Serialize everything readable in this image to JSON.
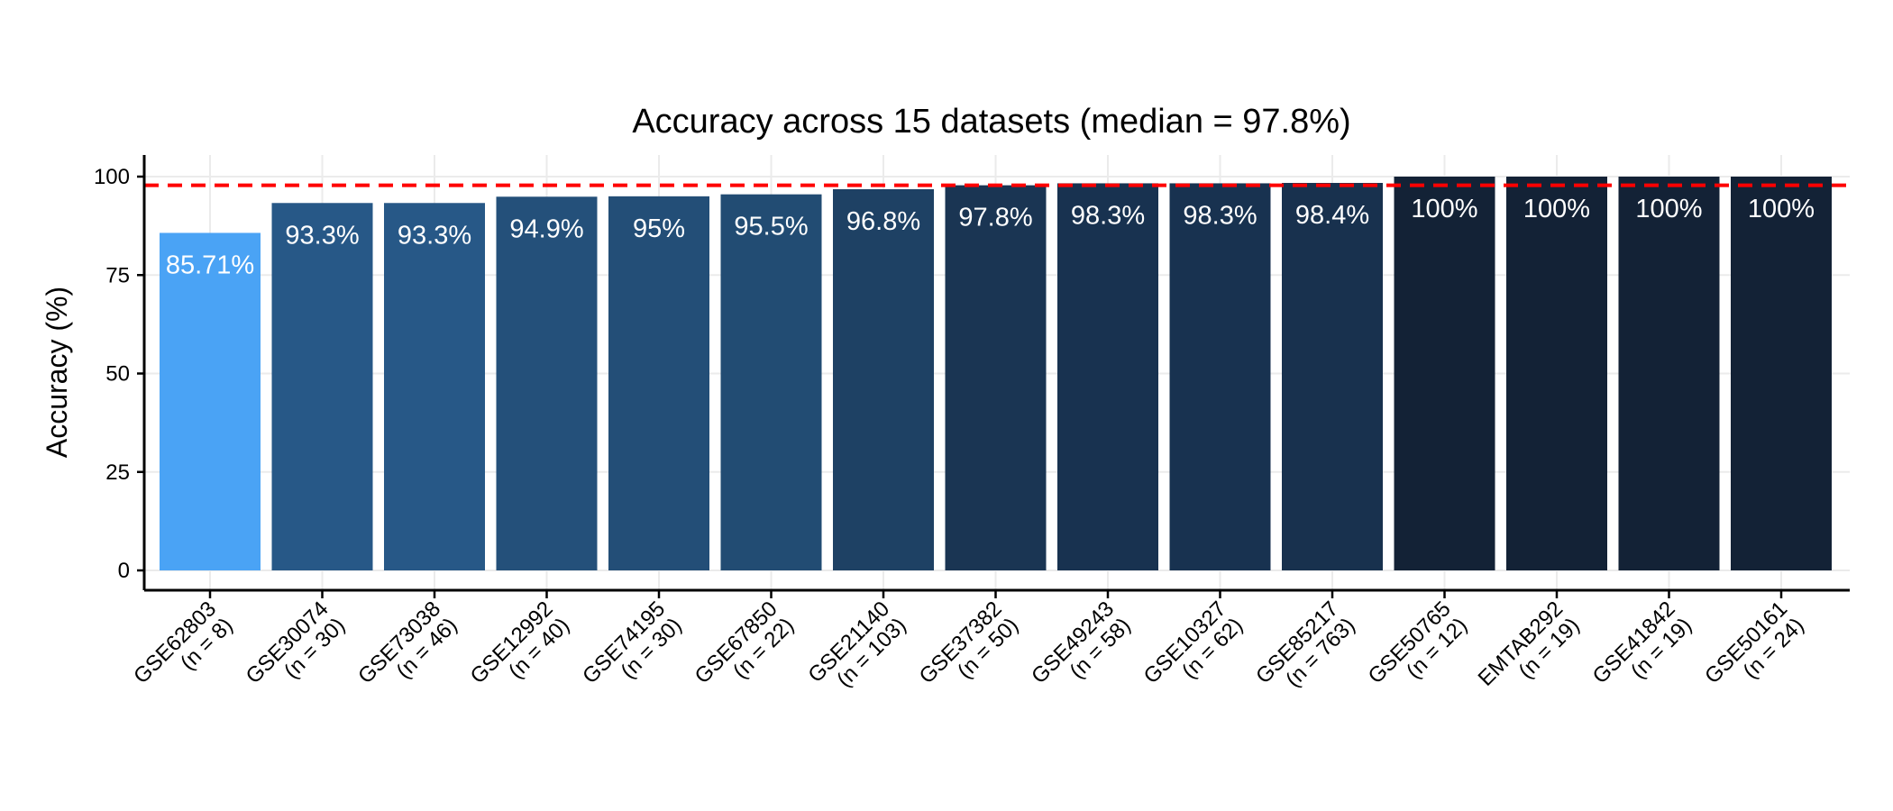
{
  "chart_data": {
    "type": "bar",
    "title": "Accuracy across 15 datasets (median = 97.8%)",
    "xlabel": "",
    "ylabel": "Accuracy (%)",
    "ylim": [
      0,
      100
    ],
    "yticks": [
      0,
      25,
      50,
      75,
      100
    ],
    "grid": true,
    "legend": "none",
    "reference_line": {
      "value": 97.8,
      "style": "dashed",
      "color": "#ff0000"
    },
    "categories": [
      [
        "GSE62803",
        "(n = 8)"
      ],
      [
        "GSE30074",
        "(n = 30)"
      ],
      [
        "GSE73038",
        "(n = 46)"
      ],
      [
        "GSE12992",
        "(n = 40)"
      ],
      [
        "GSE74195",
        "(n = 30)"
      ],
      [
        "GSE67850",
        "(n = 22)"
      ],
      [
        "GSE21140",
        "(n = 103)"
      ],
      [
        "GSE37382",
        "(n = 50)"
      ],
      [
        "GSE49243",
        "(n = 58)"
      ],
      [
        "GSE10327",
        "(n = 62)"
      ],
      [
        "GSE85217",
        "(n = 763)"
      ],
      [
        "GSE50765",
        "(n = 12)"
      ],
      [
        "EMTAB292",
        "(n = 19)"
      ],
      [
        "GSE41842",
        "(n = 19)"
      ],
      [
        "GSE50161",
        "(n = 24)"
      ]
    ],
    "values": [
      85.71,
      93.3,
      93.3,
      94.9,
      95,
      95.5,
      96.8,
      97.8,
      98.3,
      98.3,
      98.4,
      100,
      100,
      100,
      100
    ],
    "data_labels": [
      "85.71%",
      "93.3%",
      "93.3%",
      "94.9%",
      "95%",
      "95.5%",
      "96.8%",
      "97.8%",
      "98.3%",
      "98.3%",
      "98.4%",
      "100%",
      "100%",
      "100%",
      "100%"
    ],
    "bar_colors": [
      "#4aa3f5",
      "#275887",
      "#275887",
      "#24507a",
      "#234e77",
      "#224c73",
      "#1e4164",
      "#1a3553",
      "#183250",
      "#183250",
      "#18314e",
      "#132236",
      "#132236",
      "#132236",
      "#132236"
    ]
  }
}
